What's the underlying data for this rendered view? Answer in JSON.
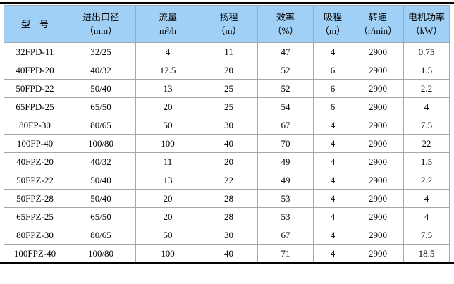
{
  "table": {
    "columns": [
      {
        "line1": "型　号",
        "line2": ""
      },
      {
        "line1": "进出口径",
        "line2": "（mm）"
      },
      {
        "line1": "流量",
        "line2": "m³/h"
      },
      {
        "line1": "扬程",
        "line2": "（m）"
      },
      {
        "line1": "效率",
        "line2": "（%）"
      },
      {
        "line1": "吸程",
        "line2": "（m）"
      },
      {
        "line1": "转速",
        "line2": "（r/min）"
      },
      {
        "line1": "电机功率",
        "line2": "（kW）"
      }
    ],
    "rows": [
      [
        "32FPD-11",
        "32/25",
        "4",
        "11",
        "47",
        "4",
        "2900",
        "0.75"
      ],
      [
        "40FPD-20",
        "40/32",
        "12.5",
        "20",
        "52",
        "6",
        "2900",
        "1.5"
      ],
      [
        "50FPD-22",
        "50/40",
        "13",
        "25",
        "52",
        "6",
        "2900",
        "2.2"
      ],
      [
        "65FPD-25",
        "65/50",
        "20",
        "25",
        "54",
        "6",
        "2900",
        "4"
      ],
      [
        "80FP-30",
        "80/65",
        "50",
        "30",
        "67",
        "4",
        "2900",
        "7.5"
      ],
      [
        "100FP-40",
        "100/80",
        "100",
        "40",
        "70",
        "4",
        "2900",
        "22"
      ],
      [
        "40FPZ-20",
        "40/32",
        "11",
        "20",
        "49",
        "4",
        "2900",
        "1.5"
      ],
      [
        "50FPZ-22",
        "50/40",
        "13",
        "22",
        "49",
        "4",
        "2900",
        "2.2"
      ],
      [
        "50FPZ-28",
        "50/40",
        "20",
        "28",
        "53",
        "4",
        "2900",
        "4"
      ],
      [
        "65FPZ-25",
        "65/50",
        "20",
        "28",
        "53",
        "4",
        "2900",
        "4"
      ],
      [
        "80FPZ-30",
        "80/65",
        "50",
        "30",
        "67",
        "4",
        "2900",
        "7.5"
      ],
      [
        "100FPZ-40",
        "100/80",
        "100",
        "40",
        "71",
        "4",
        "2900",
        "18.5"
      ]
    ],
    "colors": {
      "header_bg": "#a0d0f5",
      "grid_line": "#a8a8a8",
      "rule": "#000000",
      "row_bg": "#ffffff"
    }
  }
}
